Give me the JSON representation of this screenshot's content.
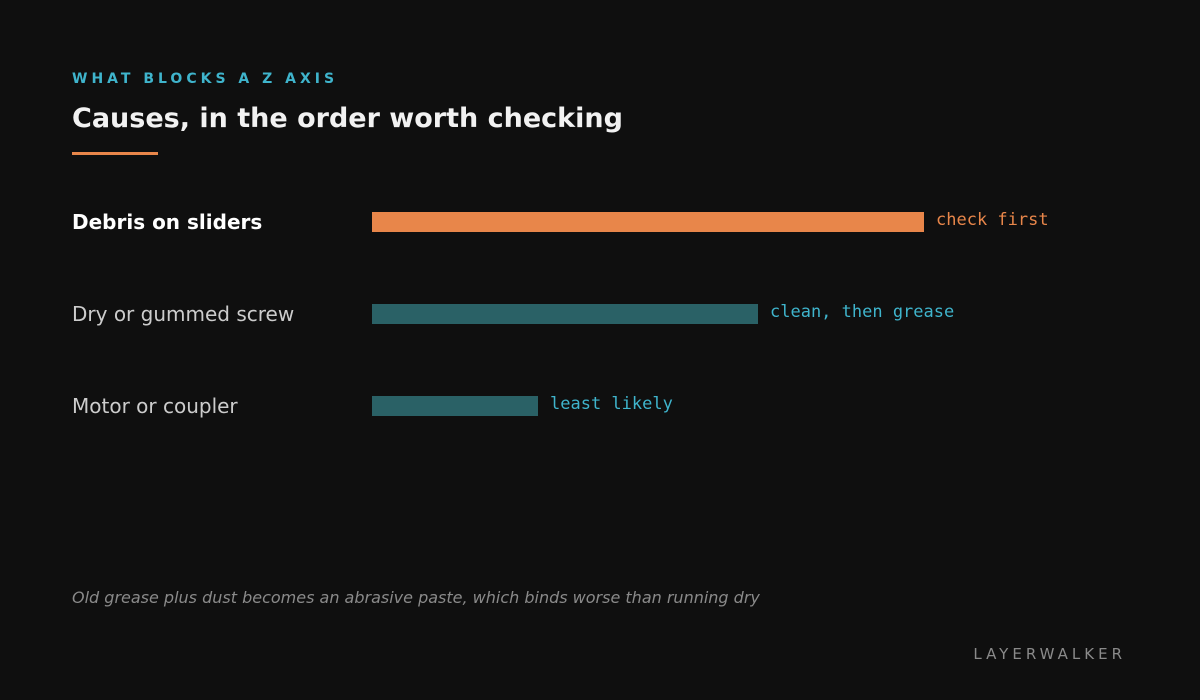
{
  "header": {
    "kicker": "WHAT BLOCKS A Z AXIS",
    "title": "Causes, in the order worth checking"
  },
  "colors": {
    "background": "#0f0f0f",
    "kicker": "#3fb4cc",
    "accent": "#e8864a",
    "bar_highlight": "#e8864a",
    "bar_default": "#2a6166",
    "note_highlight": "#e8864a",
    "note_default": "#3fb4cc",
    "label_highlight": "#ffffff",
    "label_default": "#cccccc"
  },
  "chart_data": {
    "type": "bar",
    "orientation": "horizontal",
    "categories": [
      "Debris on sliders",
      "Dry or gummed screw",
      "Motor or coupler"
    ],
    "values": [
      100,
      70,
      30
    ],
    "notes": [
      "check first",
      "clean, then grease",
      "least likely"
    ],
    "highlight_index": 0,
    "xlim": [
      0,
      100
    ],
    "grid": false,
    "axes_visible": false
  },
  "footnote": "Old grease plus dust becomes an abrasive paste, which binds worse than running dry",
  "brand": "LAYERWALKER"
}
